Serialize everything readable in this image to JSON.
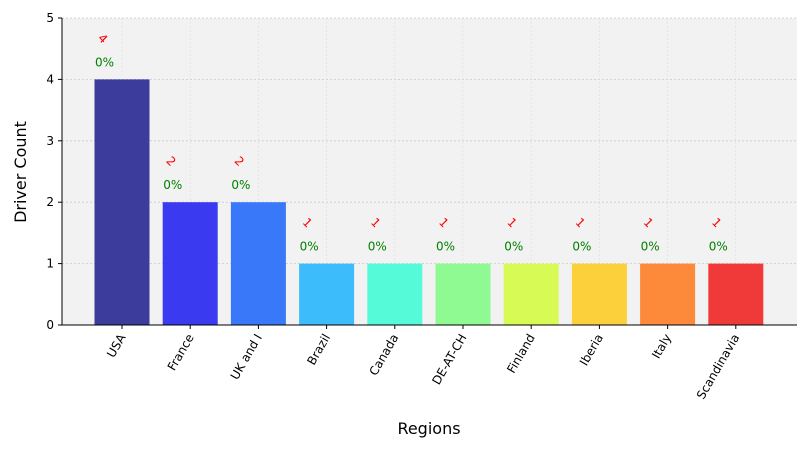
{
  "chart_data": {
    "type": "bar",
    "categories": [
      "USA",
      "France",
      "UK and I",
      "Brazil",
      "Canada",
      "DE-AT-CH",
      "Finland",
      "Iberia",
      "Italy",
      "Scandinavia"
    ],
    "values": [
      4,
      2,
      2,
      1,
      1,
      1,
      1,
      1,
      1,
      1
    ],
    "bar_colors": [
      "#3c3c9c",
      "#3a3af0",
      "#3a78fa",
      "#3cbcfa",
      "#55fad8",
      "#90fa92",
      "#d8fa55",
      "#fcd03a",
      "#fc8a3a",
      "#f03a3a"
    ],
    "count_labels": [
      "4",
      "2",
      "2",
      "1",
      "1",
      "1",
      "1",
      "1",
      "1",
      "1"
    ],
    "percent_labels": [
      "0%",
      "0%",
      "0%",
      "0%",
      "0%",
      "0%",
      "0%",
      "0%",
      "0%",
      "0%"
    ],
    "count_label_color": "#ff0000",
    "percent_label_color": "#008000",
    "xlabel": "Regions",
    "ylabel": "Driver Count",
    "ylim": [
      0,
      5
    ],
    "yticks": [
      0,
      1,
      2,
      3,
      4,
      5
    ],
    "grid": true,
    "background": "#f2f2f2"
  }
}
